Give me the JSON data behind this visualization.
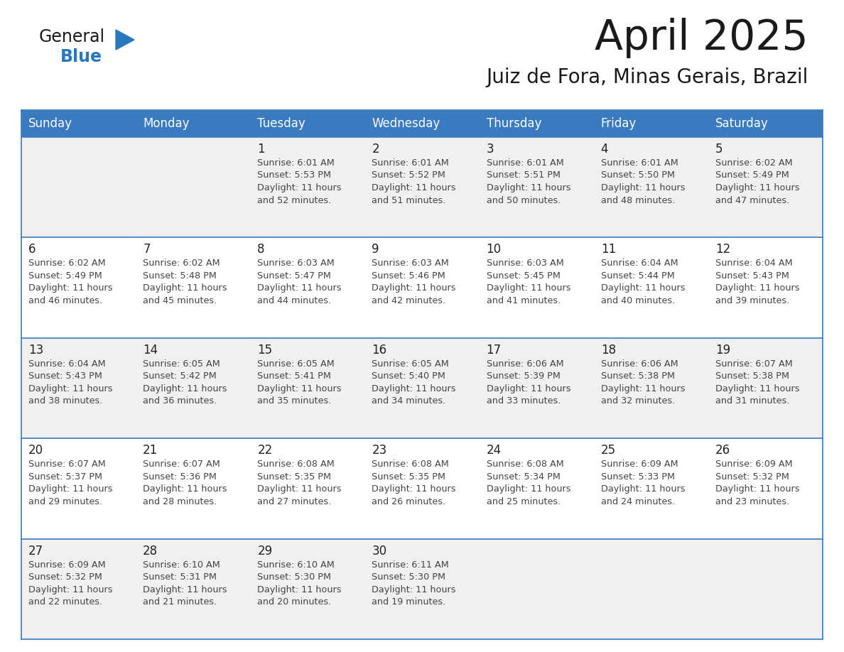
{
  "title": "April 2025",
  "subtitle": "Juiz de Fora, Minas Gerais, Brazil",
  "header_color": "#3a7abf",
  "header_text_color": "#ffffff",
  "row_odd_color": "#f0f0f0",
  "row_even_color": "#ffffff",
  "border_color": "#3a7abf",
  "text_color": "#333333",
  "day_number_color": "#222222",
  "cell_text_color": "#444444",
  "days_of_week": [
    "Sunday",
    "Monday",
    "Tuesday",
    "Wednesday",
    "Thursday",
    "Friday",
    "Saturday"
  ],
  "logo_general_color": "#1a1a1a",
  "logo_blue_color": "#2878be",
  "title_color": "#1a1a1a",
  "weeks": [
    [
      {
        "day": 0,
        "text": ""
      },
      {
        "day": 0,
        "text": ""
      },
      {
        "day": 1,
        "text": "Sunrise: 6:01 AM\nSunset: 5:53 PM\nDaylight: 11 hours\nand 52 minutes."
      },
      {
        "day": 2,
        "text": "Sunrise: 6:01 AM\nSunset: 5:52 PM\nDaylight: 11 hours\nand 51 minutes."
      },
      {
        "day": 3,
        "text": "Sunrise: 6:01 AM\nSunset: 5:51 PM\nDaylight: 11 hours\nand 50 minutes."
      },
      {
        "day": 4,
        "text": "Sunrise: 6:01 AM\nSunset: 5:50 PM\nDaylight: 11 hours\nand 48 minutes."
      },
      {
        "day": 5,
        "text": "Sunrise: 6:02 AM\nSunset: 5:49 PM\nDaylight: 11 hours\nand 47 minutes."
      }
    ],
    [
      {
        "day": 6,
        "text": "Sunrise: 6:02 AM\nSunset: 5:49 PM\nDaylight: 11 hours\nand 46 minutes."
      },
      {
        "day": 7,
        "text": "Sunrise: 6:02 AM\nSunset: 5:48 PM\nDaylight: 11 hours\nand 45 minutes."
      },
      {
        "day": 8,
        "text": "Sunrise: 6:03 AM\nSunset: 5:47 PM\nDaylight: 11 hours\nand 44 minutes."
      },
      {
        "day": 9,
        "text": "Sunrise: 6:03 AM\nSunset: 5:46 PM\nDaylight: 11 hours\nand 42 minutes."
      },
      {
        "day": 10,
        "text": "Sunrise: 6:03 AM\nSunset: 5:45 PM\nDaylight: 11 hours\nand 41 minutes."
      },
      {
        "day": 11,
        "text": "Sunrise: 6:04 AM\nSunset: 5:44 PM\nDaylight: 11 hours\nand 40 minutes."
      },
      {
        "day": 12,
        "text": "Sunrise: 6:04 AM\nSunset: 5:43 PM\nDaylight: 11 hours\nand 39 minutes."
      }
    ],
    [
      {
        "day": 13,
        "text": "Sunrise: 6:04 AM\nSunset: 5:43 PM\nDaylight: 11 hours\nand 38 minutes."
      },
      {
        "day": 14,
        "text": "Sunrise: 6:05 AM\nSunset: 5:42 PM\nDaylight: 11 hours\nand 36 minutes."
      },
      {
        "day": 15,
        "text": "Sunrise: 6:05 AM\nSunset: 5:41 PM\nDaylight: 11 hours\nand 35 minutes."
      },
      {
        "day": 16,
        "text": "Sunrise: 6:05 AM\nSunset: 5:40 PM\nDaylight: 11 hours\nand 34 minutes."
      },
      {
        "day": 17,
        "text": "Sunrise: 6:06 AM\nSunset: 5:39 PM\nDaylight: 11 hours\nand 33 minutes."
      },
      {
        "day": 18,
        "text": "Sunrise: 6:06 AM\nSunset: 5:38 PM\nDaylight: 11 hours\nand 32 minutes."
      },
      {
        "day": 19,
        "text": "Sunrise: 6:07 AM\nSunset: 5:38 PM\nDaylight: 11 hours\nand 31 minutes."
      }
    ],
    [
      {
        "day": 20,
        "text": "Sunrise: 6:07 AM\nSunset: 5:37 PM\nDaylight: 11 hours\nand 29 minutes."
      },
      {
        "day": 21,
        "text": "Sunrise: 6:07 AM\nSunset: 5:36 PM\nDaylight: 11 hours\nand 28 minutes."
      },
      {
        "day": 22,
        "text": "Sunrise: 6:08 AM\nSunset: 5:35 PM\nDaylight: 11 hours\nand 27 minutes."
      },
      {
        "day": 23,
        "text": "Sunrise: 6:08 AM\nSunset: 5:35 PM\nDaylight: 11 hours\nand 26 minutes."
      },
      {
        "day": 24,
        "text": "Sunrise: 6:08 AM\nSunset: 5:34 PM\nDaylight: 11 hours\nand 25 minutes."
      },
      {
        "day": 25,
        "text": "Sunrise: 6:09 AM\nSunset: 5:33 PM\nDaylight: 11 hours\nand 24 minutes."
      },
      {
        "day": 26,
        "text": "Sunrise: 6:09 AM\nSunset: 5:32 PM\nDaylight: 11 hours\nand 23 minutes."
      }
    ],
    [
      {
        "day": 27,
        "text": "Sunrise: 6:09 AM\nSunset: 5:32 PM\nDaylight: 11 hours\nand 22 minutes."
      },
      {
        "day": 28,
        "text": "Sunrise: 6:10 AM\nSunset: 5:31 PM\nDaylight: 11 hours\nand 21 minutes."
      },
      {
        "day": 29,
        "text": "Sunrise: 6:10 AM\nSunset: 5:30 PM\nDaylight: 11 hours\nand 20 minutes."
      },
      {
        "day": 30,
        "text": "Sunrise: 6:11 AM\nSunset: 5:30 PM\nDaylight: 11 hours\nand 19 minutes."
      },
      {
        "day": 0,
        "text": ""
      },
      {
        "day": 0,
        "text": ""
      },
      {
        "day": 0,
        "text": ""
      }
    ]
  ]
}
